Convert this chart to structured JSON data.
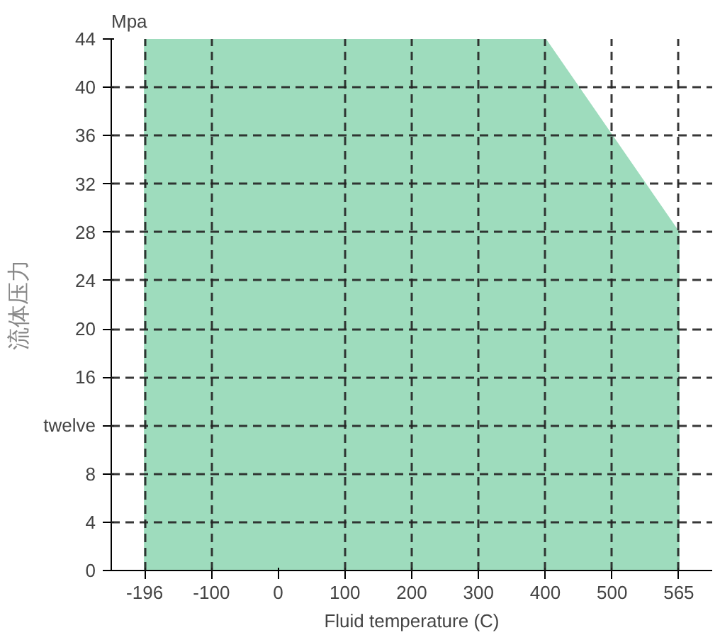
{
  "chart_data": {
    "type": "area",
    "title": "Mpa",
    "xlabel": "Fluid temperature (C)",
    "ylabel": "流体压力",
    "categories": [
      "-196",
      "-100",
      "0",
      "100",
      "200",
      "300",
      "400",
      "500",
      "565"
    ],
    "values": [
      44,
      44,
      44,
      44,
      44,
      44,
      44,
      36,
      28
    ],
    "color": "#9edcbd",
    "ylim": [
      0,
      44
    ],
    "yticks": [
      0,
      4,
      8,
      {
        "value": 12,
        "label": "twelve"
      },
      16,
      20,
      24,
      28,
      32,
      36,
      40,
      44
    ],
    "grid": true
  }
}
